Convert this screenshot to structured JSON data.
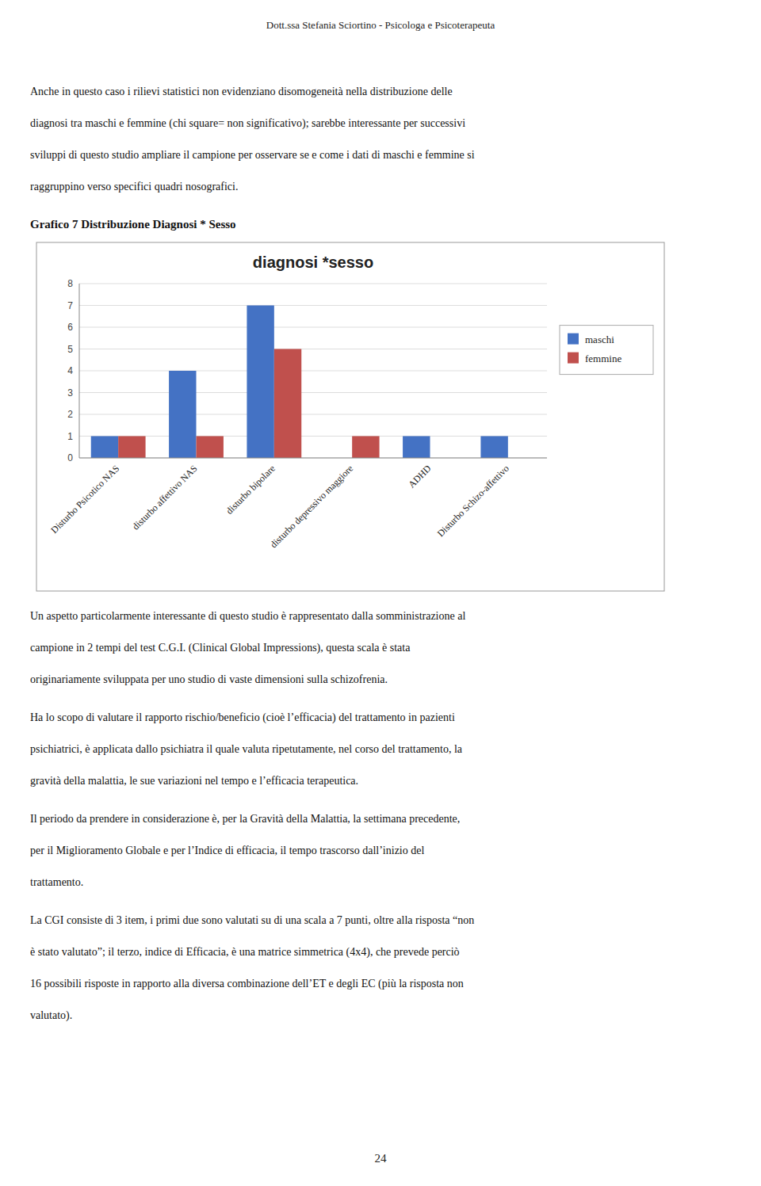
{
  "header": "Dott.ssa Stefania Sciortino  - Psicologa e Psicoterapeuta",
  "para1_lines": [
    "Anche in questo caso i rilievi statistici non evidenziano disomogeneità nella distribuzione delle",
    "diagnosi tra maschi e femmine (chi square= non significativo);  sarebbe interessante per successivi",
    "sviluppi di questo studio ampliare il campione per osservare se e come i dati di maschi e femmine si",
    "raggruppino verso specifici quadri nosografici."
  ],
  "chart_label": "Grafico 7 Distribuzione Diagnosi * Sesso",
  "chart_data": {
    "type": "bar",
    "title": "diagnosi *sesso",
    "categories": [
      "Disturbo Psicotico NAS",
      "disturbo affettivo NAS",
      "disturbo bipolare",
      "disturbo depressivo maggiore",
      "ADHD",
      "Disturbo Schizo-affettivo"
    ],
    "series": [
      {
        "name": "maschi",
        "color": "#4472C4",
        "values": [
          1,
          4,
          7,
          0,
          1,
          1
        ]
      },
      {
        "name": "femmine",
        "color": "#C0504D",
        "values": [
          1,
          1,
          5,
          1,
          0,
          0
        ]
      }
    ],
    "ylim": [
      0,
      8
    ],
    "yticks": [
      0,
      1,
      2,
      3,
      4,
      5,
      6,
      7,
      8
    ],
    "grid": true,
    "legend": "right"
  },
  "para2_lines": [
    "Un aspetto particolarmente interessante di questo studio è rappresentato dalla somministrazione al",
    "campione in 2 tempi del test C.G.I. (Clinical Global Impressions), questa scala è stata",
    "originariamente sviluppata per uno studio di vaste dimensioni sulla schizofrenia."
  ],
  "para3_lines": [
    "Ha lo scopo di valutare il rapporto rischio/beneficio (cioè l’efficacia) del trattamento in pazienti",
    "psichiatrici, è applicata dallo psichiatra il quale valuta ripetutamente, nel corso del trattamento, la",
    "gravità della malattia, le sue variazioni nel tempo e l’efficacia terapeutica."
  ],
  "para4_lines": [
    "Il periodo da prendere in considerazione è, per la Gravità della Malattia, la settimana precedente,",
    "per il Miglioramento Globale e per l’Indice di efficacia, il tempo trascorso dall’inizio del",
    "trattamento."
  ],
  "para5_lines": [
    "La CGI consiste di 3 item, i primi due sono valutati su di una scala a 7 punti, oltre alla risposta “non",
    "è stato valutato”; il terzo,  indice di Efficacia, è una matrice simmetrica (4x4), che prevede perciò",
    "16 possibili risposte in rapporto alla diversa combinazione dell’ET e degli EC (più la risposta non",
    "valutato)."
  ],
  "page_number": "24"
}
